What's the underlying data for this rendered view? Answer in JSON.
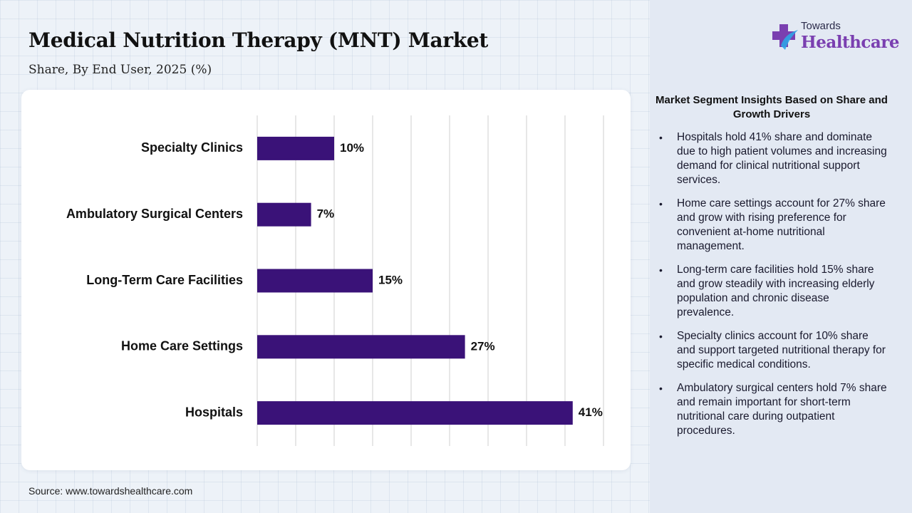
{
  "header": {
    "title": "Medical Nutrition Therapy (MNT) Market",
    "subtitle": "Share, By End User, 2025 (%)"
  },
  "logo": {
    "line1": "Towards",
    "line2": "Healthcare",
    "colors": {
      "primary": "#7a3fb0",
      "accent": "#2fa4e7"
    },
    "icon": "medical-cross-icon"
  },
  "source": "Source: www.towardshealthcare.com",
  "chart_data": {
    "type": "bar",
    "orientation": "horizontal",
    "categories": [
      "Specialty Clinics",
      "Ambulatory Surgical Centers",
      "Long-Term Care Facilities",
      "Home Care Settings",
      "Hospitals"
    ],
    "values": [
      10,
      7,
      15,
      27,
      41
    ],
    "value_labels": [
      "10%",
      "7%",
      "15%",
      "27%",
      "41%"
    ],
    "xlim": [
      0,
      45
    ],
    "grid": true,
    "bar_color": "#3a1278"
  },
  "insights": {
    "title": "Market Segment Insights Based on Share and Growth Drivers",
    "items": [
      "Hospitals hold 41% share and dominate due to high patient volumes and increasing demand for clinical nutritional support services.",
      "Home care settings account for 27% share and grow with rising preference for convenient at-home nutritional management.",
      "Long-term care facilities hold 15% share and grow steadily with increasing elderly population and chronic disease prevalence.",
      "Specialty clinics account for 10% share and support targeted nutritional therapy for specific medical conditions.",
      "Ambulatory surgical centers hold 7% share and remain important for short-term nutritional care during outpatient procedures."
    ]
  }
}
